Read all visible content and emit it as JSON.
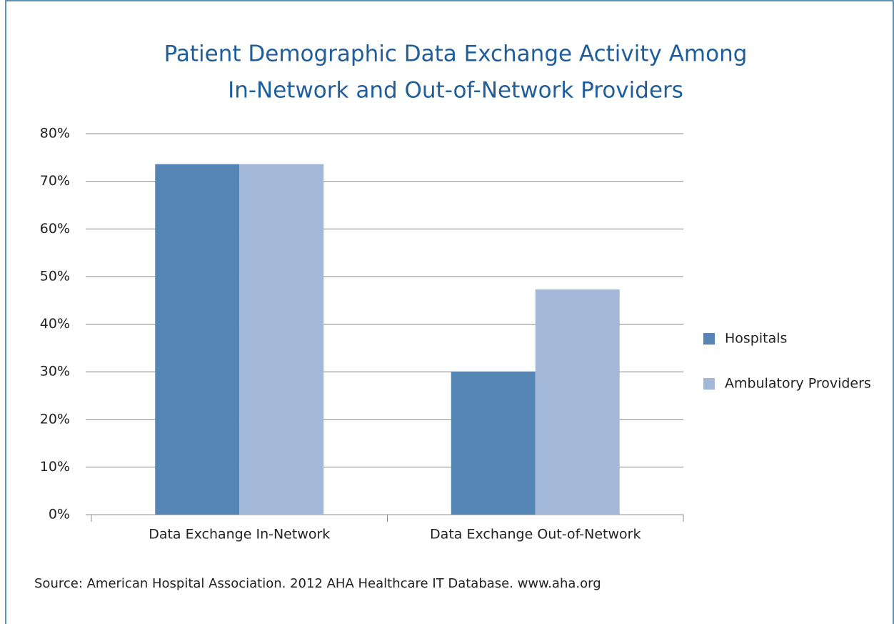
{
  "chart_data": {
    "type": "bar",
    "title": [
      "Patient Demographic Data Exchange Activity Among",
      "In-Network and Out-of-Network Providers"
    ],
    "categories": [
      "Data Exchange In-Network",
      "Data Exchange Out-of-Network"
    ],
    "series": [
      {
        "name": "Hospitals",
        "color": "#5585b5",
        "values": [
          73.6,
          30.0
        ]
      },
      {
        "name": "Ambulatory Providers",
        "color": "#a3b8d8",
        "values": [
          73.6,
          47.3
        ]
      }
    ],
    "ylim": [
      0,
      80
    ],
    "yticks": [
      {
        "value": 0,
        "label": "0%"
      },
      {
        "value": 10,
        "label": "10%"
      },
      {
        "value": 20,
        "label": "20%"
      },
      {
        "value": 30,
        "label": "30%"
      },
      {
        "value": 40,
        "label": "40%"
      },
      {
        "value": 50,
        "label": "50%"
      },
      {
        "value": 60,
        "label": "60%"
      },
      {
        "value": 70,
        "label": "70%"
      },
      {
        "value": 80,
        "label": "80%"
      }
    ],
    "grid": true,
    "legend": "right",
    "source": "Source: American Hospital Association. 2012 AHA Healthcare IT Database. www.aha.org"
  }
}
